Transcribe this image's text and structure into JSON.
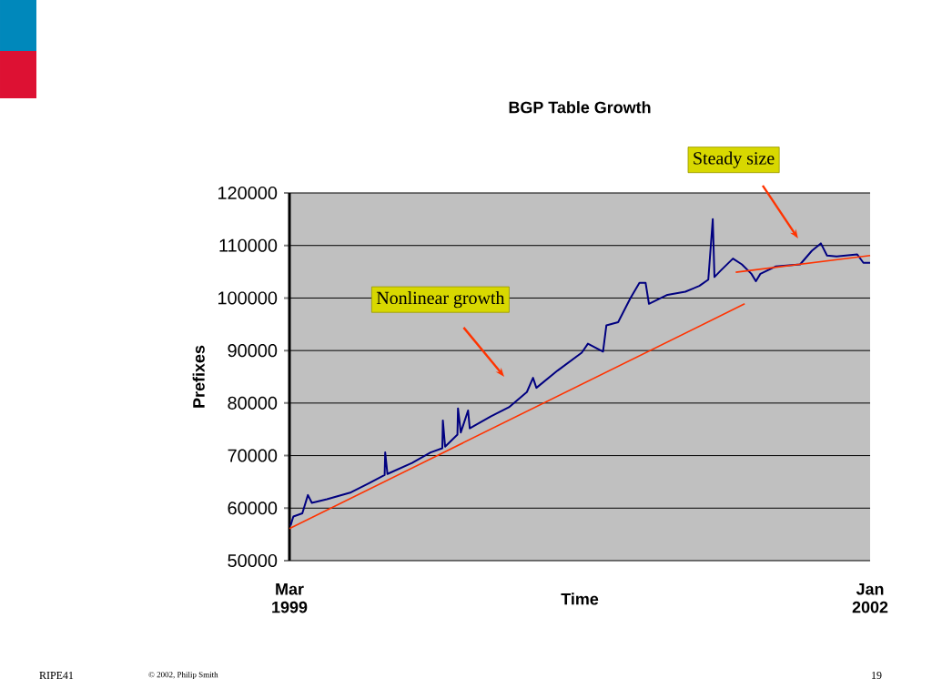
{
  "chart_data": {
    "type": "line",
    "title": "BGP Table Growth",
    "xlabel": "Time",
    "ylabel": "Prefixes",
    "xlim": [
      "1999-03-01",
      "2002-01-01"
    ],
    "xticks": [
      {
        "value": "1999-03-01",
        "label": "Mar 1999"
      },
      {
        "value": "2002-01-01",
        "label": "Jan 2002"
      }
    ],
    "ylim": [
      50000,
      120000
    ],
    "yticks": [
      50000,
      60000,
      70000,
      80000,
      90000,
      100000,
      110000,
      120000
    ],
    "grid": "y",
    "marker": "none",
    "line_style": "solid",
    "series": [
      {
        "color": "#000080",
        "x": [
          "1999-03-03",
          "1999-03-08",
          "1999-03-24",
          "1999-04-03",
          "1999-04-10",
          "1999-05-07",
          "1999-06-19",
          "1999-07-22",
          "1999-08-18",
          "1999-08-19",
          "1999-08-23",
          "1999-10-06",
          "1999-11-08",
          "1999-11-29",
          "1999-11-30",
          "1999-12-04",
          "1999-12-26",
          "1999-12-27",
          "2000-01-01",
          "2000-01-14",
          "2000-01-17",
          "2000-02-24",
          "2000-03-27",
          "2000-04-28",
          "2000-05-09",
          "2000-05-15",
          "2000-06-22",
          "2000-08-04",
          "2000-08-15",
          "2000-09-11",
          "2000-09-17",
          "2000-10-08",
          "2000-10-30",
          "2000-11-15",
          "2000-11-26",
          "2000-12-02",
          "2001-01-04",
          "2001-02-05",
          "2001-03-02",
          "2001-03-18",
          "2001-03-26",
          "2001-03-29",
          "2001-04-09",
          "2001-05-01",
          "2001-05-17",
          "2001-06-03",
          "2001-06-11",
          "2001-06-19",
          "2001-07-16",
          "2001-08-29",
          "2001-09-19",
          "2001-10-05",
          "2001-10-16",
          "2001-11-02",
          "2001-12-09",
          "2001-12-20",
          "2002-01-01"
        ],
        "values": [
          56700,
          58400,
          59000,
          62500,
          61000,
          61700,
          63000,
          64800,
          66300,
          70600,
          66500,
          68600,
          70600,
          71400,
          76700,
          71700,
          74000,
          79000,
          74400,
          78600,
          75200,
          77500,
          79200,
          82100,
          84800,
          82900,
          86200,
          89600,
          91300,
          89800,
          94800,
          95400,
          100000,
          102900,
          102900,
          98900,
          100600,
          101200,
          102300,
          103500,
          115000,
          104000,
          105200,
          107500,
          106400,
          104600,
          103200,
          104600,
          106000,
          106400,
          109000,
          110400,
          108100,
          107900,
          108300,
          106700,
          106700
        ]
      },
      {
        "type": "line",
        "color": "#ff3300",
        "x": [
          "1999-03-01",
          "2001-05-22"
        ],
        "values": [
          56100,
          98900
        ]
      },
      {
        "type": "line",
        "color": "#ff3300",
        "x": [
          "2001-05-06",
          "2002-01-01"
        ],
        "values": [
          104900,
          108100
        ]
      }
    ],
    "annotations": [
      "Nonlinear growth",
      "Steady size",
      "RIPE41",
      "© 2002, Philip Smith",
      "19"
    ]
  }
}
